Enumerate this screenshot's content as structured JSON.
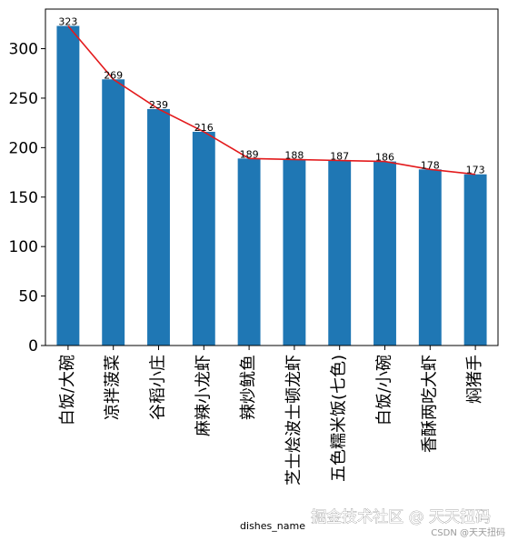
{
  "chart_data": {
    "type": "bar",
    "categories": [
      "白饭/大碗",
      "凉拌菠菜",
      "谷稻小庄",
      "麻辣小龙虾",
      "辣炒鱿鱼",
      "芝士烩波士顿龙虾",
      "五色糯米饭(七色)",
      "白饭/小碗",
      "香酥两吃大虾",
      "焖猪手"
    ],
    "values": [
      323,
      269,
      239,
      216,
      189,
      188,
      187,
      186,
      178,
      173
    ],
    "data_labels": [
      "323",
      "269",
      "239",
      "216",
      "189",
      "188",
      "187",
      "186",
      "178",
      "173"
    ],
    "line_overlay": {
      "values": [
        323,
        269,
        239,
        216,
        189,
        188,
        187,
        186,
        178,
        173
      ],
      "color": "#e31a1c"
    },
    "bar_color": "#1f77b4",
    "xlabel": "dishes_name",
    "ylabel": "",
    "title": "",
    "ylim": [
      0,
      340
    ],
    "yticks": [
      0,
      50,
      100,
      150,
      200,
      250,
      300
    ],
    "grid": false,
    "legend": "none"
  },
  "watermark": {
    "main": "掘金技术社区 @ 天天扭码",
    "sub": "CSDN @天天扭码"
  }
}
